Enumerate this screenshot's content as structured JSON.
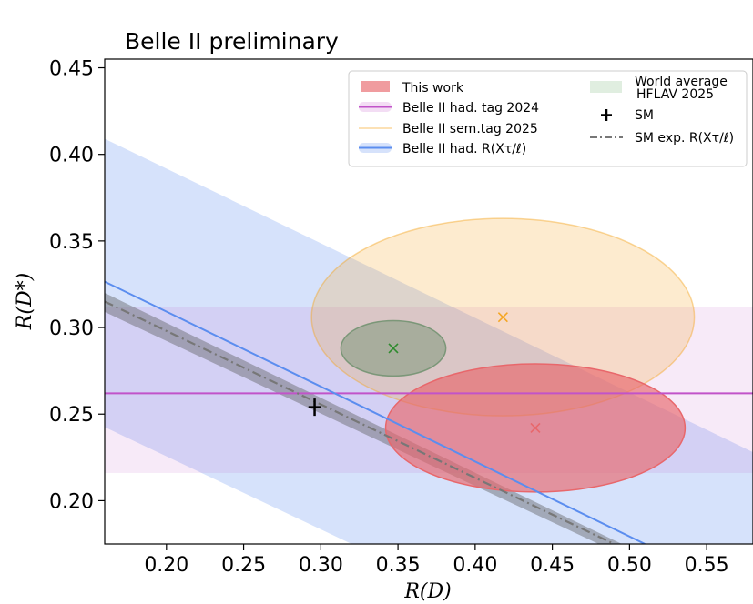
{
  "chart_data": {
    "type": "scatter",
    "title": "Belle II preliminary",
    "xlabel": "R(D)",
    "ylabel": "R(D*)",
    "xlim": [
      0.16,
      0.58
    ],
    "ylim": [
      0.175,
      0.455
    ],
    "xticks": [
      0.2,
      0.25,
      0.3,
      0.35,
      0.4,
      0.45,
      0.5,
      0.55
    ],
    "xtick_labels": [
      "0.20",
      "0.25",
      "0.30",
      "0.35",
      "0.40",
      "0.45",
      "0.50",
      "0.55"
    ],
    "yticks": [
      0.2,
      0.25,
      0.3,
      0.35,
      0.4,
      0.45
    ],
    "ytick_labels": [
      "0.20",
      "0.25",
      "0.30",
      "0.35",
      "0.40",
      "0.45"
    ],
    "grid": false,
    "legend_position": "top-right",
    "legend_col1": [
      "This work",
      "Belle II had. tag 2024",
      "Belle II sem.tag 2025",
      "Belle II had. R(Xτ/ℓ)"
    ],
    "legend_col2": [
      "World average",
      "HFLAV 2025",
      "SM",
      "SM exp. R(Xτ/ℓ)"
    ],
    "series": [
      {
        "name": "This work",
        "kind": "ellipse",
        "color": "#e8676b",
        "center": [
          0.439,
          0.242
        ],
        "half_width": [
          0.097,
          0.037
        ],
        "opacity": 0.65
      },
      {
        "name": "Belle II sem.tag 2025",
        "kind": "ellipse",
        "color": "#f5a623",
        "center": [
          0.418,
          0.306
        ],
        "half_width": [
          0.124,
          0.057
        ],
        "opacity": 0.22
      },
      {
        "name": "HFLAV 2025",
        "kind": "ellipse",
        "color": "#6b8f6b",
        "center": [
          0.347,
          0.288
        ],
        "half_width": [
          0.034,
          0.016
        ],
        "opacity": 0.45
      },
      {
        "name": "Belle II had. tag 2024",
        "kind": "hband",
        "color": "#c153c9",
        "y": 0.262,
        "y_range": [
          0.216,
          0.312
        ]
      },
      {
        "name": "Belle II had. R(Xτ/ℓ)",
        "kind": "diagonal_band",
        "color": "#5b8def",
        "line": [
          [
            0.16,
            0.3265
          ],
          [
            0.51,
            0.175
          ]
        ],
        "band_upper": [
          [
            0.16,
            0.409
          ],
          [
            0.58,
            0.228
          ]
        ],
        "band_lower": [
          [
            0.16,
            0.2425
          ],
          [
            0.32,
            0.175
          ]
        ]
      },
      {
        "name": "SM exp. R(Xτ/ℓ)",
        "kind": "diagonal_band",
        "color": "#777777",
        "line": [
          [
            0.16,
            0.315
          ],
          [
            0.49,
            0.175
          ]
        ],
        "band_upper": [
          [
            0.16,
            0.32
          ],
          [
            0.495,
            0.175
          ]
        ],
        "band_lower": [
          [
            0.16,
            0.309
          ],
          [
            0.48,
            0.175
          ]
        ]
      },
      {
        "name": "SM",
        "kind": "point",
        "color": "#000000",
        "x": 0.296,
        "y": 0.254,
        "xerr": 0.004,
        "yerr": 0.005
      }
    ],
    "marker_colors": {
      "this_work": "#e8676b",
      "semtag": "#f5a623",
      "hflav": "#2e8b2e"
    }
  }
}
